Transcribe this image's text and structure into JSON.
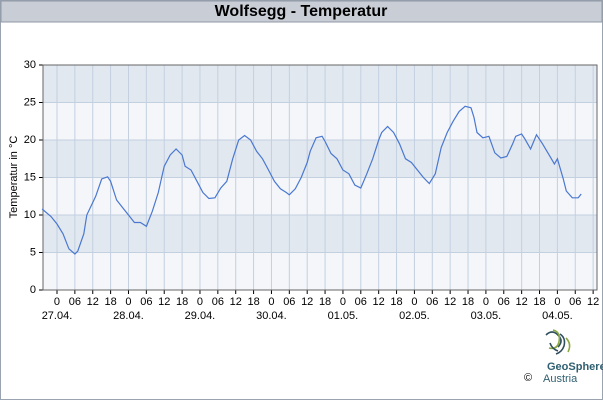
{
  "chart_data": {
    "type": "line",
    "title": "Wolfsegg - Temperatur",
    "y_label": "Temperatur in °C",
    "x": [
      -5,
      -2,
      0,
      2,
      4,
      6,
      7,
      9,
      10,
      13,
      15,
      17,
      18,
      20,
      22,
      24,
      26,
      28,
      30,
      32,
      34,
      36,
      38,
      40,
      42,
      43,
      45,
      47,
      49,
      51,
      53,
      55,
      57,
      59,
      61,
      63,
      65,
      67,
      69,
      71,
      73,
      75,
      77,
      78,
      80,
      82,
      84,
      85,
      87,
      89,
      90,
      92,
      94,
      96,
      98,
      100,
      102,
      104,
      106,
      108,
      109,
      111,
      113,
      115,
      117,
      119,
      121,
      123,
      125,
      127,
      129,
      131,
      133,
      135,
      137,
      139,
      140,
      141,
      143,
      145,
      147,
      149,
      151,
      153,
      154,
      156,
      157,
      159,
      161,
      163,
      166,
      167,
      168,
      170,
      171,
      173,
      175,
      176
    ],
    "series": [
      {
        "color": "#4a78d0",
        "values": [
          10.8,
          9.8,
          8.8,
          7.5,
          5.5,
          4.8,
          5.2,
          7.5,
          10,
          12.5,
          14.8,
          15.1,
          14.5,
          12,
          11,
          10,
          9,
          9,
          8.5,
          10.5,
          13,
          16.5,
          18,
          18.8,
          18,
          16.5,
          16,
          14.5,
          13,
          12.2,
          12.3,
          13.6,
          14.5,
          17.5,
          20,
          20.6,
          20,
          18.5,
          17.5,
          16,
          14.5,
          13.5,
          13,
          12.7,
          13.5,
          15,
          17,
          18.5,
          20.3,
          20.5,
          19.8,
          18.2,
          17.5,
          16,
          15.5,
          14,
          13.6,
          15.5,
          17.5,
          20,
          21,
          21.8,
          21,
          19.5,
          17.5,
          17,
          16,
          15,
          14.2,
          15.5,
          19,
          21,
          22.5,
          23.8,
          24.5,
          24.3,
          23,
          21,
          20.3,
          20.5,
          18.3,
          17.6,
          17.8,
          19.5,
          20.5,
          20.8,
          20.2,
          18.8,
          20.7,
          19.5,
          17.5,
          16.8,
          17.5,
          14.8,
          13.2,
          12.3,
          12.3,
          12.8
        ]
      }
    ],
    "xlim": [
      -4.7,
      181.3
    ],
    "ylim": [
      0,
      30
    ],
    "yticks": [
      0,
      5,
      10,
      15,
      20,
      25,
      30
    ],
    "xticks": [
      0,
      {
        "value": 6,
        "label": "06"
      },
      12,
      18,
      {
        "value": 24,
        "label": "0"
      },
      {
        "value": 30,
        "label": "06"
      },
      {
        "value": 36,
        "label": "12"
      },
      {
        "value": 42,
        "label": "18"
      },
      {
        "value": 48,
        "label": "0"
      },
      {
        "value": 54,
        "label": "06"
      },
      {
        "value": 60,
        "label": "12"
      },
      {
        "value": 66,
        "label": "18"
      },
      {
        "value": 72,
        "label": "0"
      },
      {
        "value": 78,
        "label": "06"
      },
      {
        "value": 84,
        "label": "12"
      },
      {
        "value": 90,
        "label": "18"
      },
      {
        "value": 96,
        "label": "0"
      },
      {
        "value": 102,
        "label": "06"
      },
      {
        "value": 108,
        "label": "12"
      },
      {
        "value": 114,
        "label": "18"
      },
      {
        "value": 120,
        "label": "0"
      },
      {
        "value": 126,
        "label": "06"
      },
      {
        "value": 132,
        "label": "12"
      },
      {
        "value": 138,
        "label": "18"
      },
      {
        "value": 144,
        "label": "0"
      },
      {
        "value": 150,
        "label": "06"
      },
      {
        "value": 156,
        "label": "12"
      },
      {
        "value": 162,
        "label": "18"
      },
      {
        "value": 168,
        "label": "0"
      },
      {
        "value": 174,
        "label": "06"
      },
      {
        "value": 180,
        "label": "12"
      }
    ],
    "date_ticks": [
      {
        "value": 0,
        "label": "27.04."
      },
      {
        "value": 24,
        "label": "28.04."
      },
      {
        "value": 48,
        "label": "29.04."
      },
      {
        "value": 72,
        "label": "30.04."
      },
      {
        "value": 96,
        "label": "01.05."
      },
      {
        "value": 120,
        "label": "02.05."
      },
      {
        "value": 144,
        "label": "03.05."
      },
      {
        "value": 168,
        "label": "04.05."
      }
    ],
    "grid": true
  },
  "logo": {
    "name": "GeoSphere",
    "country": "Austria",
    "copyright": "©"
  }
}
